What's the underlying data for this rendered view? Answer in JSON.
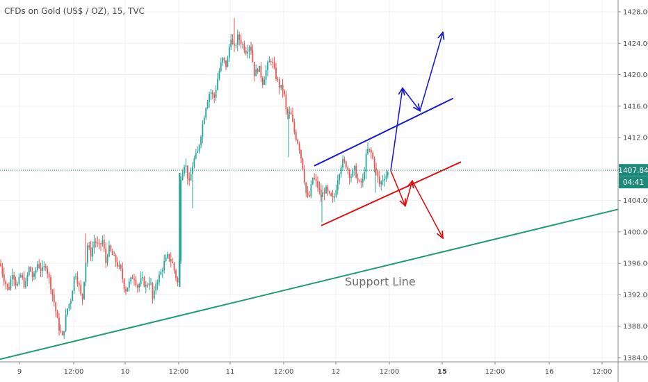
{
  "header": {
    "symbol_title": "CFDs on Gold (US$ / OZ), 15, TVC"
  },
  "chart_data": {
    "type": "candlestick",
    "title": "CFDs on Gold (US$ / OZ), 15, TVC",
    "ylim": [
      1382.6,
      1429.4
    ],
    "y_ticks": [
      "1428.00",
      "1424.00",
      "1420.00",
      "1416.00",
      "1412.00",
      "1408.00",
      "1404.00",
      "1400.00",
      "1396.00",
      "1392.00",
      "1388.00",
      "1384.00"
    ],
    "x_ticks": [
      "9",
      "12:00",
      "10",
      "12:00",
      "11",
      "12:00",
      "12",
      "12:00",
      "15",
      "12:00",
      "16",
      "12:00"
    ],
    "x_ticks_bold": [
      "15"
    ],
    "current_price": {
      "value": 1407.84,
      "label": "1407.84",
      "countdown": "04:41",
      "color": "#1e8a7a"
    },
    "annotation": "Support Line",
    "colors": {
      "up": "#26a69a",
      "down": "#ef5350",
      "blue": "#1a1ad6",
      "red": "#e01010",
      "support": "#1f9d6e",
      "grid": "#eef0f3"
    },
    "price_path": [
      [
        0,
        1396
      ],
      [
        6,
        1394
      ],
      [
        12,
        1392.5
      ],
      [
        18,
        1395
      ],
      [
        24,
        1393
      ],
      [
        30,
        1394.5
      ],
      [
        36,
        1393
      ],
      [
        42,
        1395.5
      ],
      [
        48,
        1394
      ],
      [
        54,
        1396
      ],
      [
        60,
        1395
      ],
      [
        66,
        1395.8
      ],
      [
        72,
        1393.5
      ],
      [
        78,
        1391
      ],
      [
        84,
        1388
      ],
      [
        90,
        1386.5
      ],
      [
        96,
        1390
      ],
      [
        102,
        1391.5
      ],
      [
        108,
        1395
      ],
      [
        114,
        1393
      ],
      [
        118,
        1391
      ],
      [
        122,
        1395
      ],
      [
        126,
        1398.5
      ],
      [
        130,
        1397
      ],
      [
        136,
        1399
      ],
      [
        142,
        1398
      ],
      [
        148,
        1399
      ],
      [
        152,
        1396
      ],
      [
        156,
        1398
      ],
      [
        162,
        1397
      ],
      [
        168,
        1396
      ],
      [
        174,
        1395
      ],
      [
        180,
        1392.5
      ],
      [
        186,
        1393.5
      ],
      [
        192,
        1394.5
      ],
      [
        198,
        1393
      ],
      [
        204,
        1394
      ],
      [
        210,
        1393
      ],
      [
        216,
        1394
      ],
      [
        220,
        1391
      ],
      [
        224,
        1393.5
      ],
      [
        230,
        1394.5
      ],
      [
        236,
        1396
      ],
      [
        242,
        1397
      ],
      [
        248,
        1396
      ],
      [
        254,
        1394
      ],
      [
        257,
        1393
      ],
      [
        258,
        1397
      ],
      [
        260,
        1407
      ],
      [
        266,
        1409
      ],
      [
        272,
        1406
      ],
      [
        278,
        1409
      ],
      [
        284,
        1410
      ],
      [
        290,
        1413
      ],
      [
        296,
        1416
      ],
      [
        302,
        1418
      ],
      [
        308,
        1417
      ],
      [
        314,
        1420
      ],
      [
        320,
        1422
      ],
      [
        326,
        1421
      ],
      [
        332,
        1425
      ],
      [
        336,
        1423
      ],
      [
        342,
        1424.8
      ],
      [
        348,
        1424
      ],
      [
        354,
        1423
      ],
      [
        360,
        1424
      ],
      [
        366,
        1420
      ],
      [
        372,
        1421
      ],
      [
        378,
        1419
      ],
      [
        384,
        1421
      ],
      [
        390,
        1422
      ],
      [
        396,
        1420
      ],
      [
        402,
        1418.5
      ],
      [
        408,
        1418
      ],
      [
        412,
        1415
      ],
      [
        418,
        1415
      ],
      [
        424,
        1412.5
      ],
      [
        430,
        1411
      ],
      [
        436,
        1408
      ],
      [
        440,
        1405
      ],
      [
        444,
        1404
      ],
      [
        450,
        1407
      ],
      [
        456,
        1406
      ],
      [
        462,
        1404.5
      ],
      [
        468,
        1405.5
      ],
      [
        474,
        1404.5
      ],
      [
        480,
        1404
      ],
      [
        486,
        1407
      ],
      [
        492,
        1409
      ],
      [
        498,
        1408.5
      ],
      [
        504,
        1407
      ],
      [
        510,
        1408
      ],
      [
        516,
        1406
      ],
      [
        522,
        1406.5
      ],
      [
        528,
        1410.5
      ],
      [
        534,
        1410
      ],
      [
        540,
        1408
      ],
      [
        546,
        1406
      ],
      [
        552,
        1407
      ],
      [
        558,
        1407.5
      ],
      [
        562,
        1407.84
      ]
    ],
    "extra_wicks": [
      [
        337,
        1427.2
      ],
      [
        277,
        1403.0
      ],
      [
        415,
        1409.5
      ],
      [
        540,
        1405.0
      ],
      [
        123,
        1399.8
      ],
      [
        463,
        1401.2
      ]
    ],
    "trend_lines": [
      {
        "name": "support-line",
        "color": "#1f9d6e",
        "points": [
          [
            0,
            1383.8
          ],
          [
            932,
            1403.8
          ]
        ]
      },
      {
        "name": "upper-channel-line",
        "color": "#1a1ad6",
        "points": [
          [
            452,
            1408.4
          ],
          [
            652,
            1417.0
          ]
        ]
      },
      {
        "name": "lower-channel-line",
        "color": "#e01010",
        "points": [
          [
            462,
            1400.8
          ],
          [
            663,
            1408.9
          ]
        ]
      }
    ],
    "arrows": [
      {
        "name": "bullish-arrow-path",
        "color": "#1a1ad6",
        "points": [
          [
            562,
            1407.8
          ],
          [
            579,
            1418.3
          ],
          [
            604,
            1415.4
          ],
          [
            637,
            1425.4
          ]
        ]
      },
      {
        "name": "bearish-arrow-path",
        "color": "#e01010",
        "points": [
          [
            562,
            1407.8
          ],
          [
            583,
            1403.3
          ],
          [
            593,
            1406.5
          ],
          [
            637,
            1399.2
          ]
        ]
      }
    ],
    "grid": true,
    "legend": "none"
  }
}
